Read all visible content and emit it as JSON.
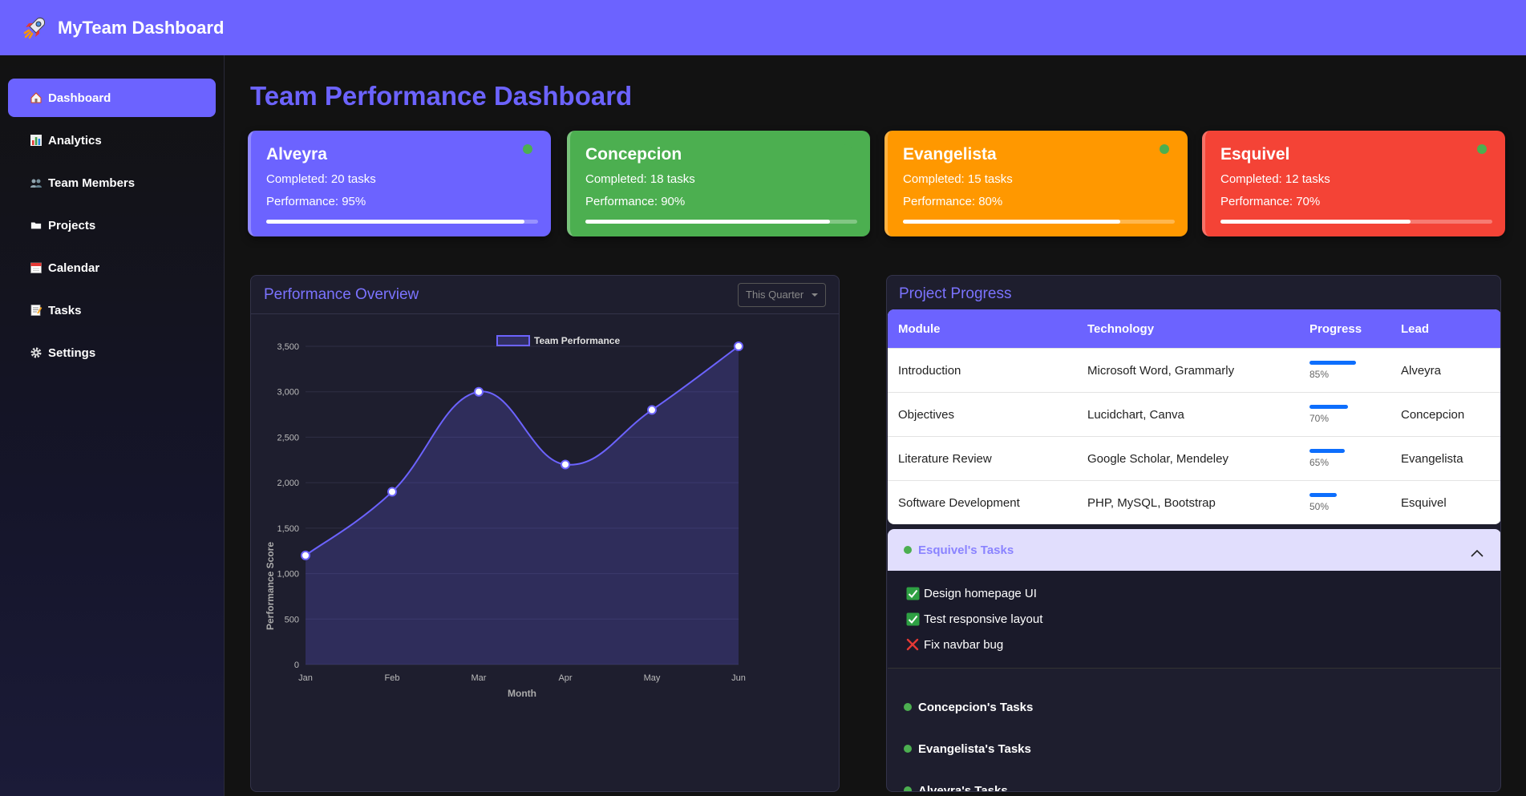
{
  "app": {
    "title": "MyTeam Dashboard",
    "icon": "rocket-icon"
  },
  "sidebar": {
    "items": [
      {
        "label": "Dashboard",
        "icon": "home-icon",
        "active": true
      },
      {
        "label": "Analytics",
        "icon": "bar-chart-icon"
      },
      {
        "label": "Team Members",
        "icon": "users-icon"
      },
      {
        "label": "Projects",
        "icon": "folder-icon"
      },
      {
        "label": "Calendar",
        "icon": "calendar-icon"
      },
      {
        "label": "Tasks",
        "icon": "memo-icon"
      },
      {
        "label": "Settings",
        "icon": "gear-icon"
      }
    ]
  },
  "main": {
    "title": "Team Performance Dashboard"
  },
  "members": [
    {
      "name": "Alveyra",
      "completed": "Completed: 20 tasks",
      "performance": "Performance: 95%",
      "progress": 0.95,
      "color": "#6c63ff",
      "online": true
    },
    {
      "name": "Concepcion",
      "completed": "Completed: 18 tasks",
      "performance": "Performance: 90%",
      "progress": 0.9,
      "color": "#4caf50",
      "online": true
    },
    {
      "name": "Evangelista",
      "completed": "Completed: 15 tasks",
      "performance": "Performance: 80%",
      "progress": 0.8,
      "color": "#ff9800",
      "online": true
    },
    {
      "name": "Esquivel",
      "completed": "Completed: 12 tasks",
      "performance": "Performance: 70%",
      "progress": 0.7,
      "color": "#f44336",
      "online": true
    }
  ],
  "overview": {
    "title": "Performance Overview",
    "range_selected": "This Quarter"
  },
  "chart_data": {
    "type": "line",
    "categories": [
      "Jan",
      "Feb",
      "Mar",
      "Apr",
      "May",
      "Jun"
    ],
    "series": [
      {
        "name": "Team Performance",
        "values": [
          1200,
          1900,
          3000,
          2200,
          2800,
          3500
        ],
        "color": "#6c63ff",
        "fill": true
      }
    ],
    "xlabel": "Month",
    "ylabel": "Performance Score",
    "ylim": [
      0,
      3500
    ],
    "yticks": [
      "0",
      "500",
      "1,000",
      "1,500",
      "2,000",
      "2,500",
      "3,000",
      "3,500"
    ],
    "grid": true,
    "legend": "top"
  },
  "projects": {
    "title": "Project Progress",
    "headers": [
      "Module",
      "Technology",
      "Progress",
      "Lead"
    ],
    "rows": [
      {
        "module": "Introduction",
        "technology": "Microsoft Word, Grammarly",
        "progress": "85%",
        "progress_value": 0.85,
        "lead": "Alveyra"
      },
      {
        "module": "Objectives",
        "technology": "Lucidchart, Canva",
        "progress": "70%",
        "progress_value": 0.7,
        "lead": "Concepcion"
      },
      {
        "module": "Literature Review",
        "technology": "Google Scholar, Mendeley",
        "progress": "65%",
        "progress_value": 0.65,
        "lead": "Evangelista"
      },
      {
        "module": "Software Development",
        "technology": "PHP, MySQL, Bootstrap",
        "progress": "50%",
        "progress_value": 0.5,
        "lead": "Esquivel"
      }
    ]
  },
  "task_groups": [
    {
      "label": "Esquivel's Tasks",
      "expanded": true,
      "tasks": [
        {
          "text": "Design homepage UI",
          "done": true
        },
        {
          "text": "Test responsive layout",
          "done": true
        },
        {
          "text": "Fix navbar bug",
          "done": false
        }
      ]
    },
    {
      "label": "Concepcion's Tasks",
      "expanded": false
    },
    {
      "label": "Evangelista's Tasks",
      "expanded": false
    },
    {
      "label": "Alveyra's Tasks",
      "expanded": false
    }
  ]
}
